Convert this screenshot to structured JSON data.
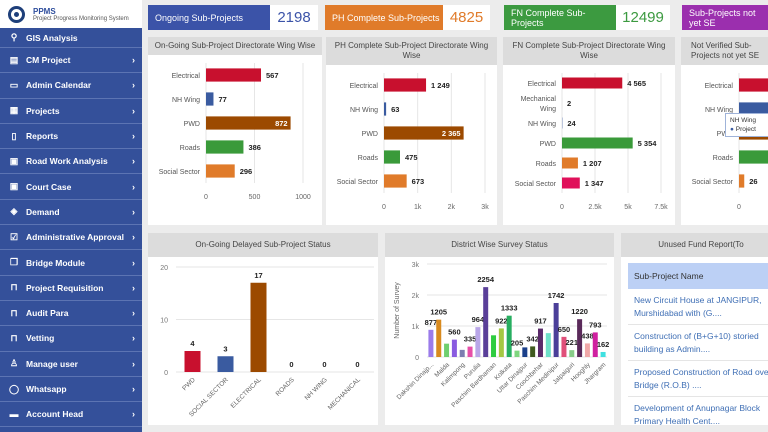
{
  "app": {
    "name": "PPMS",
    "subtitle": "Project Progress Monitoring System"
  },
  "sidebar": {
    "items": [
      {
        "label": "GIS Analysis",
        "icon": "map-pin-icon",
        "glyph": "⚲"
      },
      {
        "label": "CM Project",
        "icon": "document-icon",
        "glyph": "▤"
      },
      {
        "label": "Admin Calendar",
        "icon": "calendar-icon",
        "glyph": "▭"
      },
      {
        "label": "Projects",
        "icon": "projects-icon",
        "glyph": "▦"
      },
      {
        "label": "Reports",
        "icon": "file-icon",
        "glyph": "▯"
      },
      {
        "label": "Road Work Analysis",
        "icon": "id-card-icon",
        "glyph": "▣"
      },
      {
        "label": "Court Case",
        "icon": "id-card-icon",
        "glyph": "▣"
      },
      {
        "label": "Demand",
        "icon": "cube-icon",
        "glyph": "◈"
      },
      {
        "label": "Administrative Approval",
        "icon": "checkbox-icon",
        "glyph": "☑"
      },
      {
        "label": "Bridge Module",
        "icon": "copy-icon",
        "glyph": "❐"
      },
      {
        "label": "Project Requisition",
        "icon": "bookmark-icon",
        "glyph": "⊓"
      },
      {
        "label": "Audit Para",
        "icon": "bookmark-icon",
        "glyph": "⊓"
      },
      {
        "label": "Vetting",
        "icon": "bookmark-icon",
        "glyph": "⊓"
      },
      {
        "label": "Manage user",
        "icon": "user-icon",
        "glyph": "♙"
      },
      {
        "label": "Whatsapp",
        "icon": "whatsapp-icon",
        "glyph": "◯"
      },
      {
        "label": "Account Head",
        "icon": "credit-card-icon",
        "glyph": "▬"
      }
    ],
    "chevron": "›"
  },
  "cards": [
    {
      "label": "Ongoing Sub-Projects",
      "value": "2198",
      "color": "#3b53a8",
      "valcolor": "#3b53a8"
    },
    {
      "label": "PH Complete Sub-Projects",
      "value": "4825",
      "color": "#e07b2a",
      "valcolor": "#e07b2a"
    },
    {
      "label": "FN Complete Sub-Projects",
      "value": "12499",
      "color": "#3c9a40",
      "valcolor": "#3c9a40"
    },
    {
      "label": "Sub-Projects not yet SE",
      "value": "",
      "color": "#9b2fae",
      "valcolor": "#9b2fae"
    }
  ],
  "chart_data": [
    {
      "type": "bar",
      "orientation": "horizontal",
      "title": "On-Going Sub-Project Directorate Wing Wise",
      "categories": [
        "Electrical",
        "NH Wing",
        "PWD",
        "Roads",
        "Social Sector"
      ],
      "values": [
        567,
        77,
        872,
        386,
        296
      ],
      "labels": [
        "567",
        "77",
        "872",
        "386",
        "296"
      ],
      "colors": [
        "#c8102e",
        "#3a5ba0",
        "#9c4a00",
        "#3a9a3a",
        "#e07b2a"
      ],
      "xlim": [
        0,
        1000
      ],
      "ticks": [
        "0",
        "500",
        "1000"
      ]
    },
    {
      "type": "bar",
      "orientation": "horizontal",
      "title": "PH Complete Sub-Project Directorate Wing Wise",
      "categories": [
        "Electrical",
        "NH Wing",
        "PWD",
        "Roads",
        "Social Sector"
      ],
      "values": [
        1249,
        63,
        2365,
        475,
        673
      ],
      "labels": [
        "1 249",
        "63",
        "2 365",
        "475",
        "673"
      ],
      "colors": [
        "#c8102e",
        "#3a5ba0",
        "#9c4a00",
        "#3a9a3a",
        "#e07b2a"
      ],
      "xlim": [
        0,
        3000
      ],
      "ticks": [
        "0",
        "1k",
        "2k",
        "3k"
      ]
    },
    {
      "type": "bar",
      "orientation": "horizontal",
      "title": "FN Complete Sub-Project Directorate Wing Wise",
      "categories": [
        "Electrical",
        "Mechanical Wing",
        "NH Wing",
        "PWD",
        "Roads",
        "Social Sector"
      ],
      "values": [
        4565,
        2,
        24,
        5354,
        1207,
        1347
      ],
      "labels": [
        "4 565",
        "2",
        "24",
        "5 354",
        "1 207",
        "1 347"
      ],
      "colors": [
        "#c8102e",
        "#888",
        "#3a5ba0",
        "#3a9a3a",
        "#e07b2a",
        "#e0105a"
      ],
      "xlim": [
        0,
        7500
      ],
      "ticks": [
        "0",
        "2.5k",
        "5k",
        "7.5k"
      ]
    },
    {
      "type": "bar",
      "orientation": "horizontal",
      "title": "Not Verified Sub-Projects not yet SE",
      "categories": [
        "Electrical",
        "NH Wing",
        "PWD",
        "Roads",
        "Social Sector"
      ],
      "values": [
        null,
        null,
        null,
        null,
        26
      ],
      "labels": [
        "",
        "",
        "",
        "",
        "26"
      ],
      "colors": [
        "#c8102e",
        "#3a5ba0",
        "#9c4a00",
        "#3a9a3a",
        "#e07b2a"
      ],
      "xlim": [
        0,
        1000
      ],
      "ticks": [
        "0",
        "5"
      ],
      "tooltip": {
        "title": "NH Wing",
        "series": "Project"
      }
    },
    {
      "type": "bar",
      "title": "On-Going Delayed Sub-Project Status",
      "categories": [
        "PWD",
        "SOCIAL SECTOR",
        "ELECTRICAL",
        "ROADS",
        "NH WING",
        "MECHANICAL"
      ],
      "values": [
        4,
        3,
        17,
        0,
        0,
        0
      ],
      "colors": [
        "#c8102e",
        "#3a5ba0",
        "#9c4a00",
        "#3a9a3a",
        "#888",
        "#888"
      ],
      "ylim": [
        0,
        20
      ],
      "yticks": [
        "0",
        "10",
        "20"
      ]
    },
    {
      "type": "bar",
      "title": "District Wise Survey Status",
      "ylabel": "Number of Survey",
      "categories": [
        "Dakshin Dinajp...",
        "",
        "Malda",
        "",
        "Kalimpong",
        "",
        "Purulia",
        "",
        "Paschim Bardhaman",
        "",
        "Kolkata",
        "",
        "Uttar Dinajpur",
        "",
        "Coochbehar",
        "",
        "Paschim Medinipur",
        "",
        "Jalpaiguri",
        "",
        "Hooghly",
        "",
        "Jhargram"
      ],
      "values": [
        877,
        1205,
        430,
        560,
        230,
        335,
        964,
        2254,
        700,
        922,
        1333,
        205,
        310,
        342,
        917,
        770,
        1742,
        650,
        221,
        1220,
        438,
        793,
        162
      ],
      "labels": [
        "877",
        "1205",
        "",
        "560",
        "",
        "335",
        "964",
        "2254",
        "",
        "922",
        "1333",
        "205",
        "",
        "342",
        "917",
        "",
        "1742",
        "650",
        "221",
        "1220",
        "438",
        "793",
        "162"
      ],
      "colors": [
        "#9b7bea",
        "#d88a1e",
        "#6fcf6f",
        "#8a5be0",
        "#7d7db0",
        "#e64fa8",
        "#b9a6e8",
        "#5a3f99",
        "#2ecc40",
        "#a5c843",
        "#27ae60",
        "#7fd67f",
        "#1a3f8a",
        "#3f5a1f",
        "#5a2a6a",
        "#6fe0c8",
        "#4b3f99",
        "#e0507a",
        "#88cc88",
        "#5a2a5a",
        "#f0a8a8",
        "#d020a0",
        "#40e0e0"
      ],
      "ylim": [
        0,
        3000
      ],
      "yticks": [
        "0",
        "1k",
        "2k",
        "3k"
      ]
    }
  ],
  "fund": {
    "title": "Unused Fund Report(To",
    "header": "Sub-Project Name",
    "rows": [
      "New Circuit House at JANGIPUR, Murshidabad with (G....",
      "Construction of (B+G+10) storied building as Admin....",
      "Proposed Construction of Road over Bridge (R.O.B) ....",
      "Development of Anupnagar Block Primary Health Cent...."
    ]
  }
}
